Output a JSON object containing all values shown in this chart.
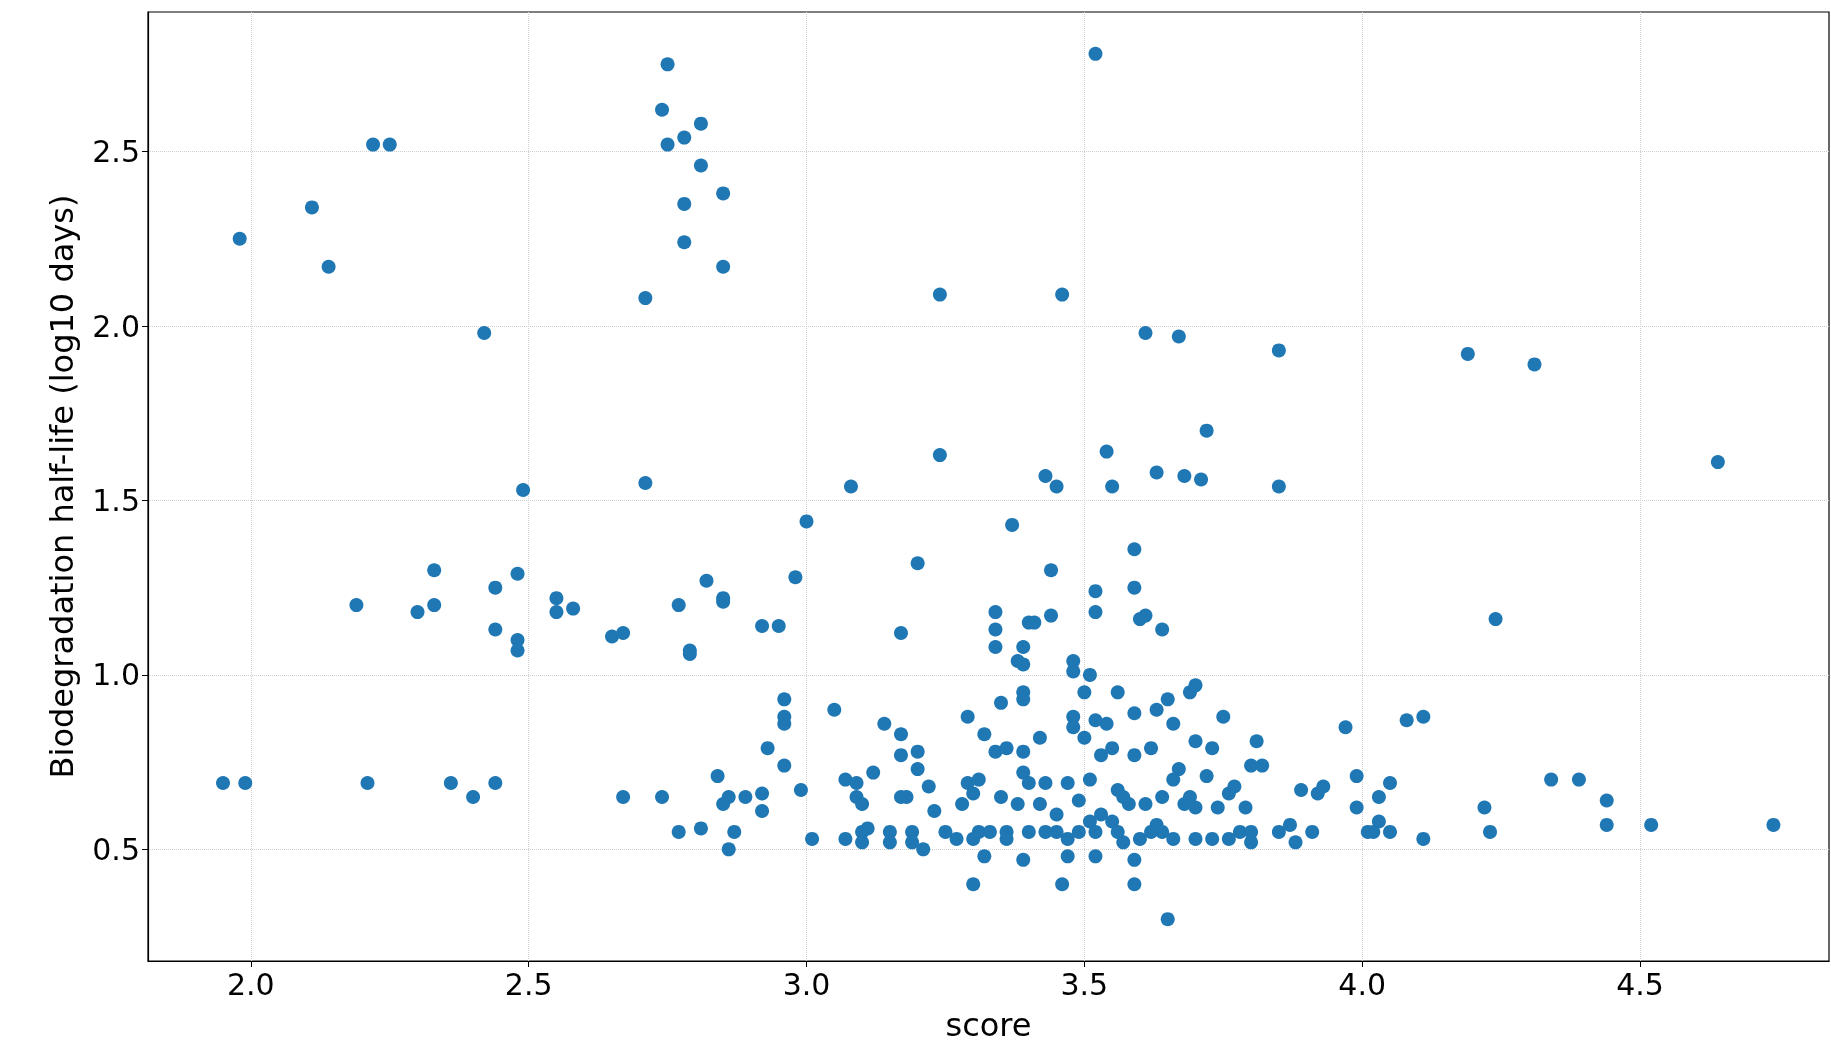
{
  "chart_data": {
    "type": "scatter",
    "xlabel": "score",
    "ylabel": "Biodegradation half-life (log10 days)",
    "xlim": [
      1.815,
      4.84
    ],
    "ylim": [
      0.18,
      2.9
    ],
    "xticks": [
      {
        "value": 2,
        "label": "2.0"
      },
      {
        "value": 2.5,
        "label": "2.5"
      },
      {
        "value": 3,
        "label": "3.0"
      },
      {
        "value": 3.5,
        "label": "3.5"
      },
      {
        "value": 4,
        "label": "4.0"
      },
      {
        "value": 4.5,
        "label": "4.5"
      }
    ],
    "yticks": [
      {
        "value": 0.5,
        "label": "0.5"
      },
      {
        "value": 1,
        "label": "1.0"
      },
      {
        "value": 1.5,
        "label": "1.5"
      },
      {
        "value": 2,
        "label": "2.0"
      },
      {
        "value": 2.5,
        "label": "2.5"
      }
    ],
    "grid": true,
    "marker": "circle",
    "series": [
      {
        "color": "#1f77b4",
        "x": [
          1.95,
          1.99,
          1.98,
          2.11,
          2.14,
          2.19,
          2.21,
          2.22,
          2.25,
          2.3,
          2.33,
          2.33,
          2.36,
          2.4,
          2.42,
          2.44,
          2.44,
          2.44,
          2.48,
          2.48,
          2.48,
          2.49,
          2.55,
          2.55,
          2.58,
          2.65,
          2.67,
          2.67,
          2.71,
          2.71,
          2.74,
          2.75,
          2.74,
          2.75,
          2.77,
          2.77,
          2.78,
          2.78,
          2.78,
          2.79,
          2.79,
          2.81,
          2.81,
          2.81,
          2.82,
          2.84,
          2.85,
          2.85,
          2.85,
          2.85,
          2.85,
          2.86,
          2.86,
          2.87,
          2.89,
          2.92,
          2.92,
          2.92,
          2.93,
          2.95,
          2.96,
          2.96,
          2.96,
          2.96,
          2.98,
          2.99,
          3.0,
          3.01,
          3.05,
          3.07,
          3.07,
          3.08,
          3.09,
          3.09,
          3.1,
          3.1,
          3.1,
          3.11,
          3.12,
          3.14,
          3.15,
          3.15,
          3.17,
          3.17,
          3.17,
          3.17,
          3.18,
          3.19,
          3.19,
          3.2,
          3.2,
          3.2,
          3.21,
          3.22,
          3.23,
          3.24,
          3.24,
          3.25,
          3.27,
          3.28,
          3.29,
          3.29,
          3.3,
          3.3,
          3.3,
          3.31,
          3.31,
          3.32,
          3.32,
          3.33,
          3.34,
          3.34,
          3.34,
          3.34,
          3.35,
          3.35,
          3.36,
          3.36,
          3.37,
          3.38,
          3.38,
          3.39,
          3.39,
          3.39,
          3.39,
          3.39,
          3.39,
          3.39,
          3.4,
          3.4,
          3.4,
          3.41,
          3.42,
          3.42,
          3.43,
          3.43,
          3.44,
          3.44,
          3.45,
          3.45,
          3.46,
          3.46,
          3.47,
          3.47,
          3.48,
          3.48,
          3.48,
          3.48,
          3.49,
          3.49,
          3.5,
          3.5,
          3.51,
          3.51,
          3.51,
          3.52,
          3.52,
          3.52,
          3.52,
          3.52,
          3.53,
          3.53,
          3.54,
          3.54,
          3.55,
          3.55,
          3.56,
          3.56,
          3.57,
          3.58,
          3.59,
          3.59,
          3.59,
          3.59,
          3.59,
          3.59,
          3.6,
          3.61,
          3.61,
          3.62,
          3.63,
          3.63,
          3.64,
          3.64,
          3.64,
          3.65,
          3.65,
          3.66,
          3.67,
          3.67,
          3.68,
          3.68,
          3.69,
          3.7,
          3.7,
          3.7,
          3.71,
          3.72,
          3.72,
          3.73,
          3.73,
          3.74,
          3.75,
          3.76,
          3.77,
          3.78,
          3.79,
          3.8,
          3.81,
          3.82,
          3.85,
          3.85,
          3.85,
          3.87,
          3.88,
          3.89,
          3.91,
          3.92,
          3.93,
          3.97,
          3.99,
          3.99,
          4.01,
          4.02,
          4.03,
          4.03,
          4.05,
          4.05,
          4.08,
          4.11,
          4.11,
          4.19,
          4.22,
          4.23,
          4.24,
          4.31,
          4.34,
          4.39,
          4.44,
          4.44,
          4.52,
          4.64,
          4.74,
          3.36,
          3.43,
          3.47,
          3.52,
          3.56,
          3.6,
          3.62,
          3.66,
          3.7,
          3.76,
          3.8,
          3.8,
          3.55,
          3.63,
          3.45,
          3.57,
          3.61,
          3.66,
          3.69
        ],
        "values": [
          0.69,
          0.69,
          2.25,
          2.34,
          2.17,
          1.2,
          0.69,
          2.52,
          2.52,
          1.18,
          1.3,
          1.2,
          0.69,
          0.65,
          1.98,
          1.25,
          1.13,
          0.69,
          1.29,
          1.1,
          1.07,
          1.53,
          1.22,
          1.18,
          1.19,
          1.11,
          1.12,
          0.65,
          1.55,
          2.08,
          0.65,
          2.75,
          2.62,
          2.52,
          1.2,
          0.55,
          2.35,
          2.24,
          2.54,
          1.07,
          1.06,
          2.58,
          2.46,
          0.56,
          1.27,
          0.71,
          2.38,
          2.17,
          1.22,
          1.21,
          0.63,
          0.65,
          0.5,
          0.55,
          0.65,
          0.61,
          0.66,
          1.14,
          0.79,
          1.14,
          0.93,
          0.88,
          0.86,
          0.74,
          1.28,
          0.67,
          1.44,
          0.53,
          0.9,
          0.7,
          0.53,
          1.54,
          0.69,
          0.65,
          0.63,
          0.55,
          0.52,
          0.56,
          0.72,
          0.86,
          0.55,
          0.52,
          1.12,
          0.83,
          0.77,
          0.65,
          0.65,
          0.55,
          0.52,
          1.32,
          0.78,
          0.73,
          0.5,
          0.68,
          0.61,
          2.09,
          1.63,
          0.55,
          0.53,
          0.63,
          0.69,
          0.88,
          0.66,
          0.4,
          0.53,
          0.55,
          0.7,
          0.48,
          0.83,
          0.55,
          1.18,
          1.13,
          1.08,
          0.78,
          0.92,
          0.65,
          0.55,
          0.79,
          1.43,
          0.63,
          1.04,
          1.03,
          1.08,
          0.95,
          0.93,
          0.78,
          0.72,
          0.47,
          0.69,
          0.55,
          1.15,
          1.15,
          0.82,
          0.63,
          1.57,
          0.69,
          1.3,
          1.17,
          1.54,
          0.55,
          2.09,
          0.4,
          0.48,
          0.69,
          1.04,
          1.01,
          0.88,
          0.85,
          0.64,
          0.55,
          0.95,
          0.82,
          1.0,
          0.7,
          0.58,
          0.48,
          1.24,
          1.18,
          2.78,
          0.87,
          0.77,
          0.6,
          1.64,
          0.86,
          1.54,
          0.79,
          0.95,
          0.67,
          0.52,
          0.63,
          1.36,
          1.25,
          0.89,
          0.4,
          0.47,
          0.77,
          1.16,
          1.98,
          1.17,
          0.79,
          1.58,
          0.9,
          1.13,
          0.65,
          0.55,
          0.3,
          0.93,
          0.86,
          1.97,
          0.73,
          0.63,
          1.57,
          0.95,
          0.97,
          0.62,
          0.81,
          1.56,
          1.7,
          0.71,
          0.53,
          0.79,
          0.62,
          0.88,
          0.66,
          0.68,
          0.55,
          0.62,
          0.74,
          0.81,
          0.74,
          1.93,
          1.54,
          0.55,
          0.57,
          0.52,
          0.67,
          0.55,
          0.66,
          0.68,
          0.85,
          0.71,
          0.62,
          0.55,
          0.55,
          0.58,
          0.65,
          0.69,
          0.55,
          0.87,
          0.88,
          0.53,
          1.92,
          0.62,
          0.55,
          1.16,
          1.89,
          0.7,
          0.7,
          0.64,
          0.57,
          0.57,
          1.61,
          0.57,
          0.53,
          0.55,
          0.53,
          0.55,
          0.55,
          0.53,
          0.55,
          0.53,
          0.53,
          0.53,
          0.52,
          0.55,
          0.58,
          0.57,
          0.6,
          0.65,
          0.63,
          0.7,
          0.65
        ]
      }
    ]
  }
}
